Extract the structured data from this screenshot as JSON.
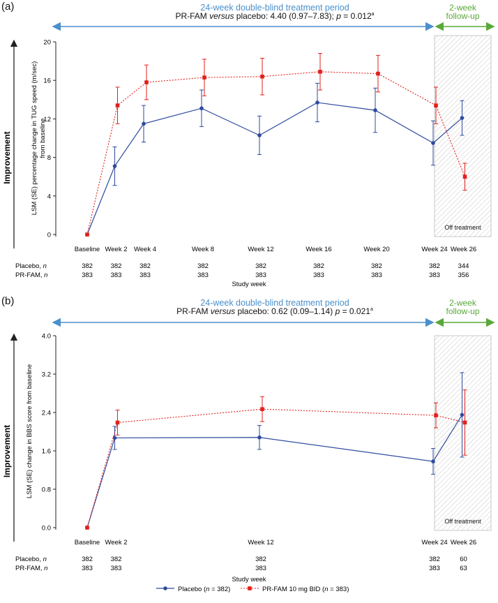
{
  "colors": {
    "placebo": "#2e4a9e",
    "prfam": "#e0201b",
    "period_arrow": "#4a90cc",
    "followup": "#5aa83a",
    "axis": "#222222"
  },
  "figure": {
    "x_title": "Study week",
    "legend": {
      "placebo_prefix": "Placebo (",
      "placebo_n": "n",
      "placebo_suffix": " = 382)",
      "prfam_prefix": "PR-FAM 10 mg BID (",
      "prfam_n": "n",
      "prfam_suffix": " = 383)"
    },
    "off_treatment": "Off treatment",
    "improvement": "Improvement"
  },
  "chart_data": [
    {
      "panel": "(a)",
      "type": "line",
      "period_label": "24-week double-blind treatment period",
      "followup_label_1": "2-week",
      "followup_label_2": "follow-up",
      "stat_prefix": "PR-FAM ",
      "stat_versus": "versus",
      "stat_mid": " placebo: 4.40 (0.97–7.83); ",
      "stat_p": "p",
      "stat_value": " = 0.012",
      "stat_sup": "a",
      "ylabel_1": "LSM (SE) percentage change in TUG speed (m/sec)",
      "ylabel_2": "from baseline",
      "ylim": [
        0,
        20
      ],
      "yticks": [
        0,
        4,
        8,
        12,
        16,
        20
      ],
      "ytick_labels": [
        "0",
        "4",
        "8",
        "12",
        "16",
        "20"
      ],
      "x_weeks": [
        0,
        2,
        4,
        8,
        12,
        16,
        20,
        24,
        26
      ],
      "categories": [
        "Baseline",
        "Week 2",
        "Week 4",
        "Week 8",
        "Week 12",
        "Week 16",
        "Week 20",
        "Week 24",
        "Week 26"
      ],
      "series": [
        {
          "name": "Placebo",
          "values": [
            0,
            7.1,
            11.5,
            13.1,
            10.3,
            13.7,
            12.9,
            9.5,
            12.1
          ],
          "se": [
            0,
            2.0,
            1.9,
            1.9,
            2.0,
            2.0,
            2.3,
            2.3,
            1.8
          ]
        },
        {
          "name": "PR-FAM 10 mg BID",
          "values": [
            0,
            13.4,
            15.8,
            16.3,
            16.4,
            16.9,
            16.7,
            13.4,
            6.0
          ],
          "se": [
            0,
            1.9,
            1.8,
            1.9,
            1.9,
            1.9,
            1.9,
            1.9,
            1.4
          ]
        }
      ],
      "n_rows": [
        {
          "label": "Placebo, ",
          "label_n": "n",
          "values": [
            "382",
            "382",
            "382",
            "382",
            "382",
            "382",
            "382",
            "382",
            "344"
          ]
        },
        {
          "label": "PR-FAM, ",
          "label_n": "n",
          "values": [
            "383",
            "383",
            "383",
            "383",
            "383",
            "383",
            "383",
            "383",
            "356"
          ]
        }
      ]
    },
    {
      "panel": "(b)",
      "type": "line",
      "period_label": "24-week double-blind treatment period",
      "followup_label_1": "2-week",
      "followup_label_2": "follow-up",
      "stat_prefix": "PR-FAM ",
      "stat_versus": "versus",
      "stat_mid": " placebo: 0.62 (0.09–1.14) ",
      "stat_p": "p",
      "stat_value": " = 0.021",
      "stat_sup": "a",
      "ylabel_1": "LSM (SE) change in BBS score from baseline",
      "ylabel_2": "",
      "ylim": [
        0,
        4
      ],
      "yticks": [
        0,
        0.8,
        1.6,
        2.4,
        3.2,
        4.0
      ],
      "ytick_labels": [
        "0.0",
        "0.8",
        "1.6",
        "2.4",
        "3.2",
        "4.0"
      ],
      "x_weeks": [
        0,
        2,
        12,
        24,
        26
      ],
      "categories": [
        "Baseline",
        "Week 2",
        "Week 12",
        "Week 24",
        "Week 26"
      ],
      "series": [
        {
          "name": "Placebo",
          "values": [
            0,
            1.87,
            1.88,
            1.38,
            2.35
          ],
          "se": [
            0,
            0.24,
            0.25,
            0.27,
            0.88
          ]
        },
        {
          "name": "PR-FAM 10 mg BID",
          "values": [
            0,
            2.19,
            2.47,
            2.34,
            2.19
          ],
          "se": [
            0,
            0.26,
            0.26,
            0.26,
            0.68
          ]
        }
      ],
      "n_rows": [
        {
          "label": "Placebo, ",
          "label_n": "n",
          "values": [
            "382",
            "382",
            "382",
            "382",
            "60"
          ]
        },
        {
          "label": "PR-FAM, ",
          "label_n": "n",
          "values": [
            "383",
            "383",
            "383",
            "383",
            "63"
          ]
        }
      ]
    }
  ]
}
